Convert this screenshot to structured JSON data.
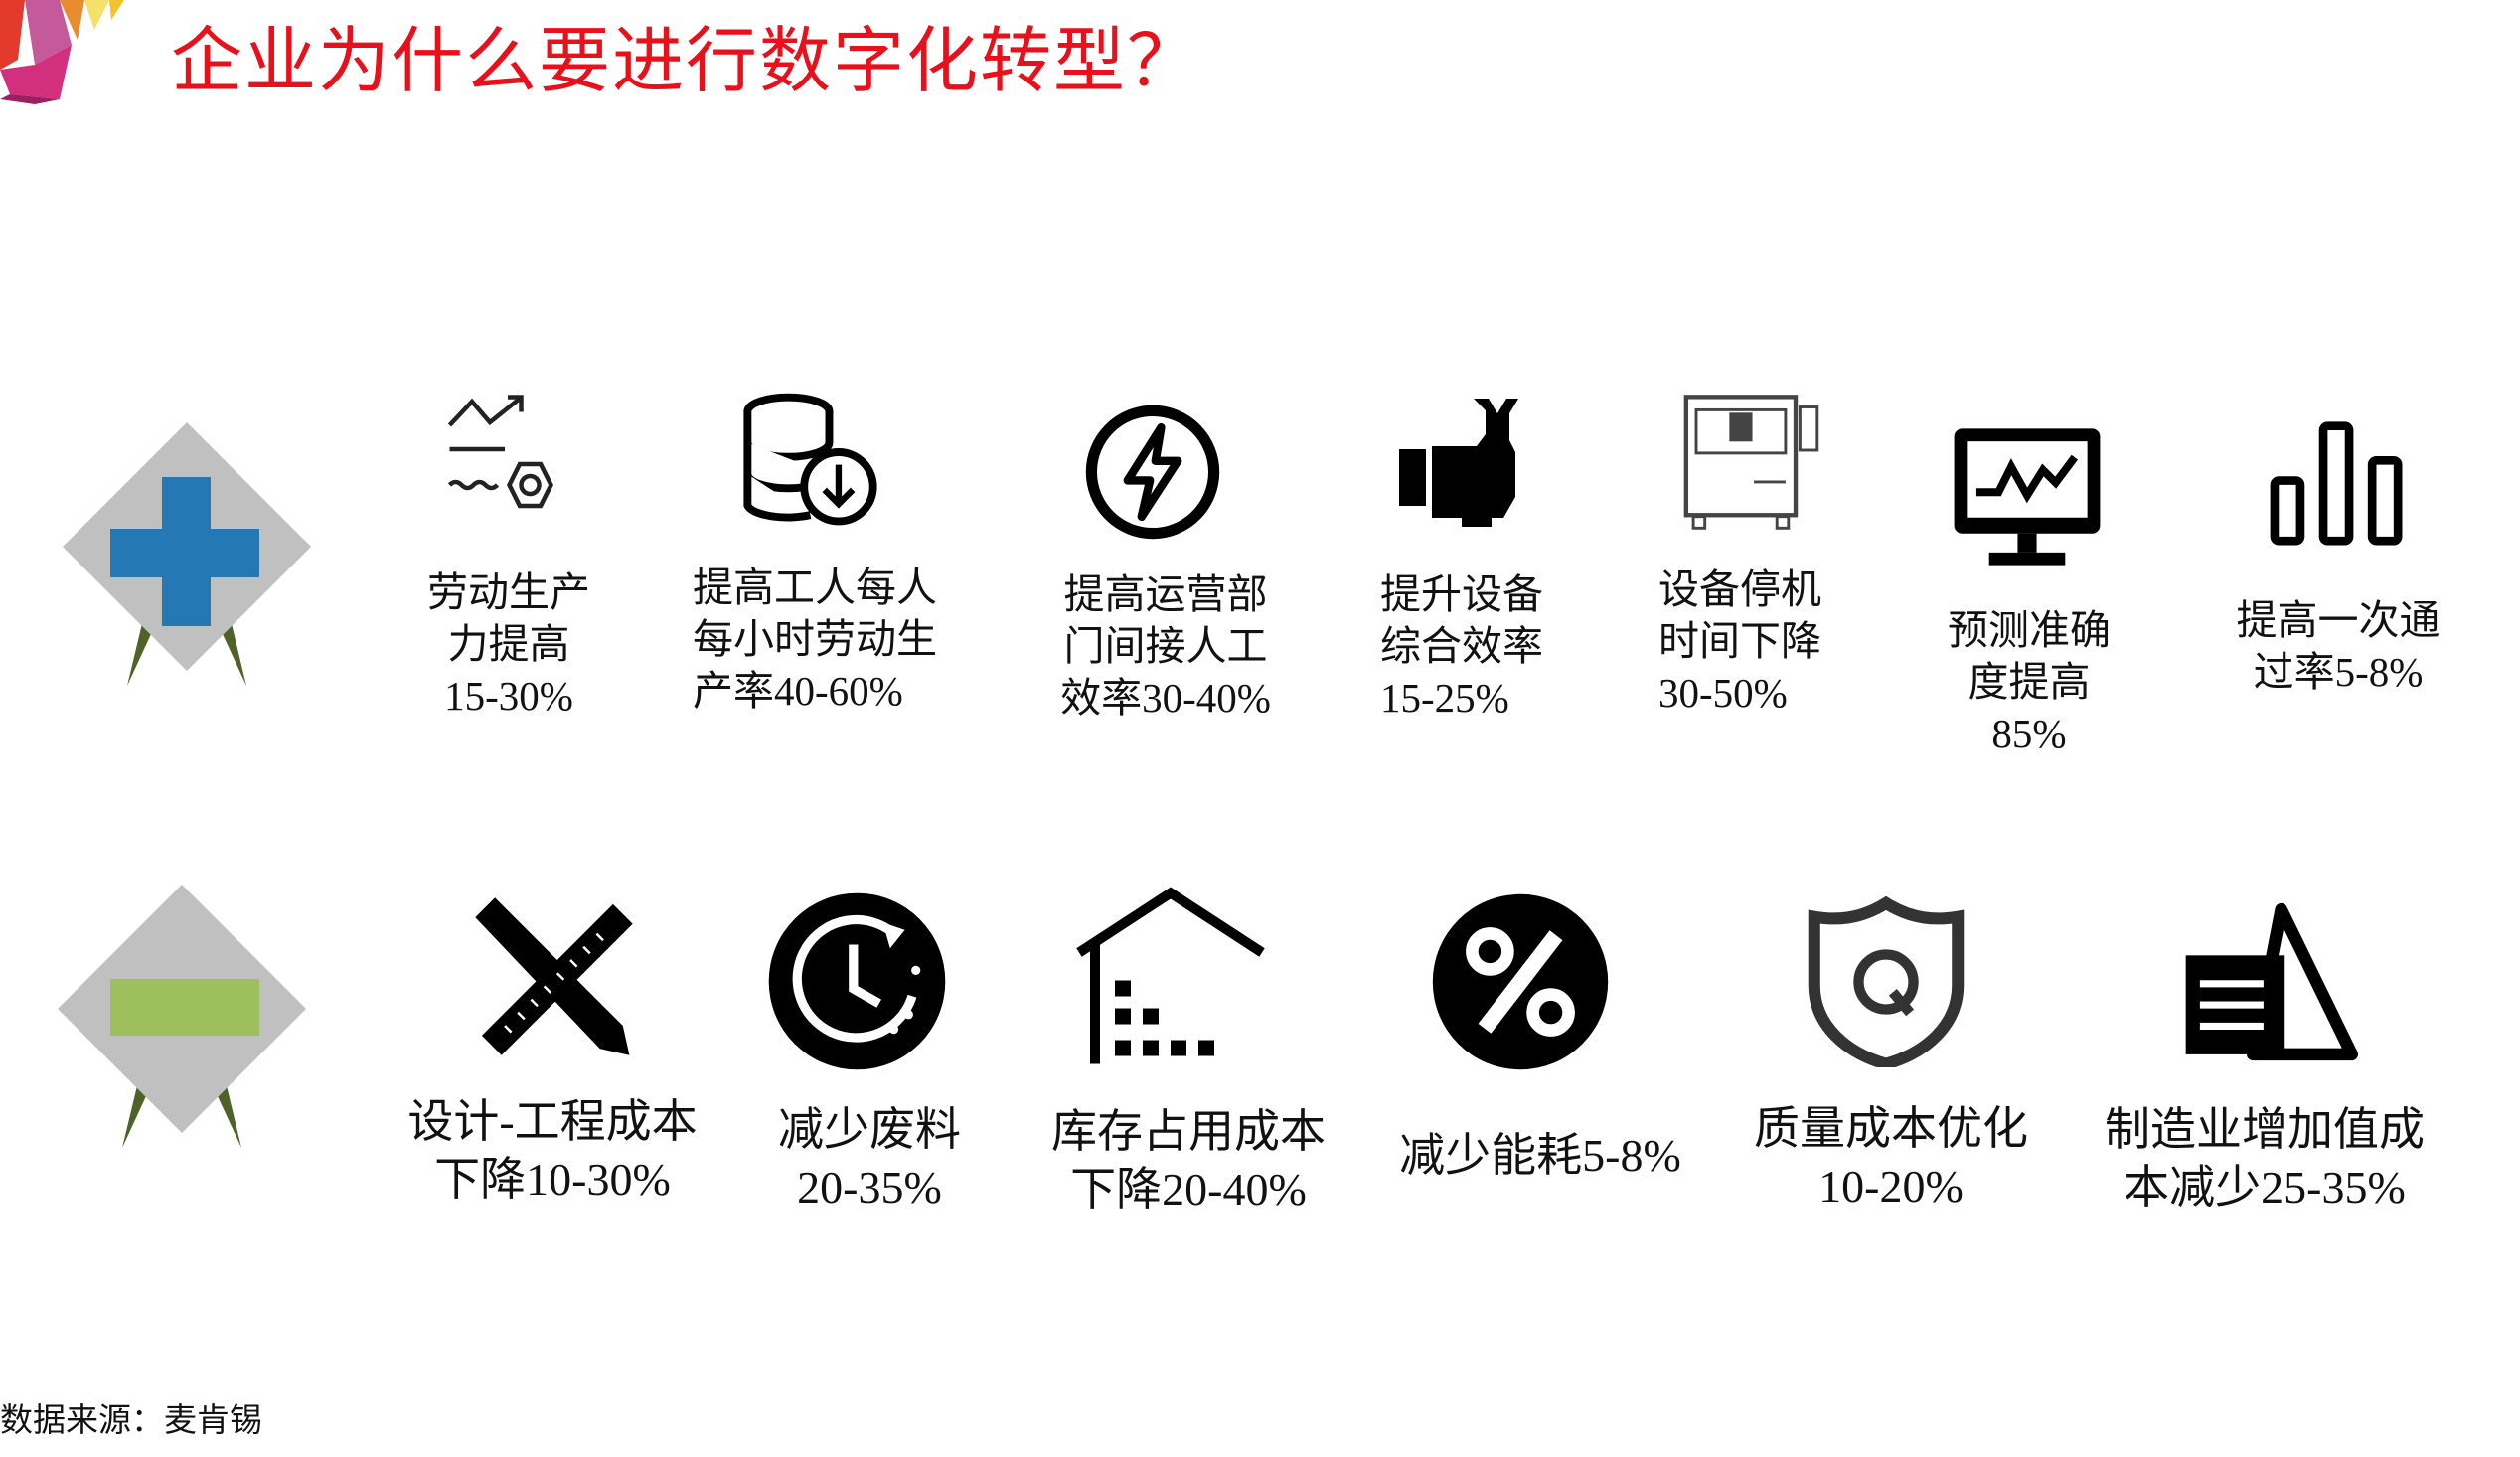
{
  "title": "企业为什么要进行数字化转型？",
  "colors": {
    "title": "#e8101a",
    "plus": "#2479b5",
    "minus": "#9dc05c",
    "diamond": "#c0c0c0",
    "diamond_shadow": "#4f6228"
  },
  "increase": {
    "icon": "plus-icon",
    "items": [
      {
        "icon": "productivity-chart-gear-icon",
        "lines": [
          "劳动生产",
          "力提高",
          "15-30%"
        ]
      },
      {
        "icon": "database-download-icon",
        "lines": [
          "提高工人每人",
          "每小时劳动生",
          "产率40-60%"
        ]
      },
      {
        "icon": "lightning-circle-icon",
        "lines": [
          "提高运营部",
          "门间接人工",
          "效率30-40%"
        ]
      },
      {
        "icon": "hand-wrench-icon",
        "lines": [
          "提升设备",
          "综合效率",
          "15-25%"
        ]
      },
      {
        "icon": "machine-icon",
        "lines": [
          "设备停机",
          "时间下降",
          "30-50%"
        ]
      },
      {
        "icon": "monitor-pulse-icon",
        "lines": [
          "预测准确",
          "度提高",
          "85%"
        ]
      },
      {
        "icon": "bar-chart-icon",
        "lines": [
          "提高一次通",
          "过率5-8%"
        ]
      }
    ]
  },
  "decrease": {
    "icon": "minus-icon",
    "items": [
      {
        "icon": "pencil-ruler-icon",
        "lines": [
          "设计-工程成本",
          "下降10-30%"
        ]
      },
      {
        "icon": "clock-circle-icon",
        "lines": [
          "减少废料",
          "20-35%"
        ]
      },
      {
        "icon": "warehouse-icon",
        "lines": [
          "库存占用成本",
          "下降20-40%"
        ]
      },
      {
        "icon": "percent-circle-icon",
        "lines": [
          "减少能耗5-8%"
        ]
      },
      {
        "icon": "quality-shield-icon",
        "lines": [
          "质量成本优化",
          "10-20%"
        ]
      },
      {
        "icon": "manufacturing-cost-icon",
        "lines": [
          "制造业增加值成",
          "本减少25-35%"
        ]
      }
    ]
  },
  "footer": "数据来源：麦肯锡"
}
